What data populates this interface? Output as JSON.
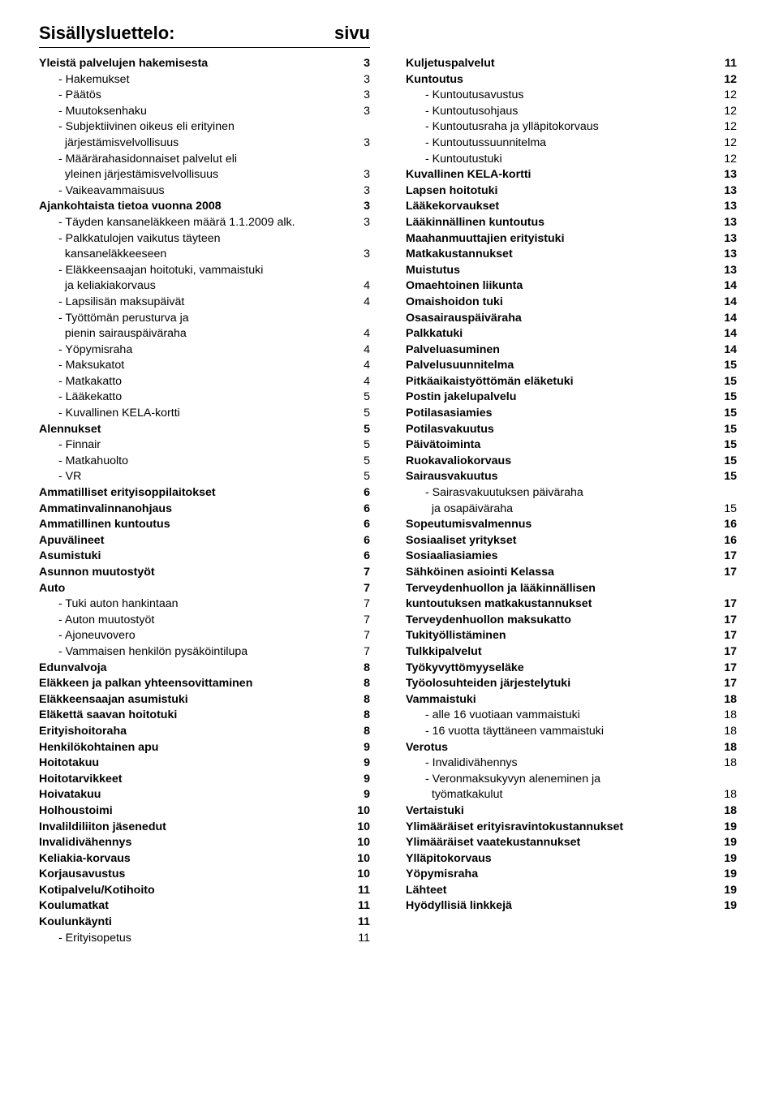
{
  "title_left": "Sisällysluettelo:",
  "title_right": "sivu",
  "left": [
    {
      "label": "Yleistä palvelujen hakemisesta",
      "page": "3",
      "bold": true,
      "indent": 0
    },
    {
      "label": "- Hakemukset",
      "page": "3",
      "bold": false,
      "indent": 1
    },
    {
      "label": "- Päätös",
      "page": "3",
      "bold": false,
      "indent": 1
    },
    {
      "label": "- Muutoksenhaku",
      "page": "3",
      "bold": false,
      "indent": 1
    },
    {
      "label": "- Subjektiivinen oikeus eli erityinen",
      "page": "",
      "bold": false,
      "indent": 1,
      "nopage": true
    },
    {
      "label": "järjestämisvelvollisuus",
      "page": "3",
      "bold": false,
      "indent": 1,
      "pad": true
    },
    {
      "label": "- Määrärahasidonnaiset palvelut eli",
      "page": "",
      "bold": false,
      "indent": 1,
      "nopage": true
    },
    {
      "label": "yleinen järjestämisvelvollisuus",
      "page": "3",
      "bold": false,
      "indent": 1,
      "pad": true
    },
    {
      "label": "- Vaikeavammaisuus",
      "page": "3",
      "bold": false,
      "indent": 1
    },
    {
      "label": "Ajankohtaista tietoa vuonna 2008",
      "page": "3",
      "bold": true,
      "indent": 0
    },
    {
      "label": "- Täyden kansaneläkkeen määrä 1.1.2009 alk.",
      "page": "3",
      "bold": false,
      "indent": 1
    },
    {
      "label": "- Palkkatulojen vaikutus täyteen",
      "page": "",
      "bold": false,
      "indent": 1,
      "nopage": true
    },
    {
      "label": "kansaneläkkeeseen",
      "page": "3",
      "bold": false,
      "indent": 1,
      "pad": true
    },
    {
      "label": "- Eläkkeensaajan hoitotuki, vammaistuki",
      "page": "",
      "bold": false,
      "indent": 1,
      "nopage": true
    },
    {
      "label": "ja keliakiakorvaus",
      "page": "4",
      "bold": false,
      "indent": 1,
      "pad": true
    },
    {
      "label": "- Lapsilisän maksupäivät",
      "page": "4",
      "bold": false,
      "indent": 1
    },
    {
      "label": "- Työttömän perusturva ja",
      "page": "",
      "bold": false,
      "indent": 1,
      "nopage": true
    },
    {
      "label": "pienin sairauspäiväraha",
      "page": "4",
      "bold": false,
      "indent": 1,
      "pad": true
    },
    {
      "label": "- Yöpymisraha",
      "page": "4",
      "bold": false,
      "indent": 1
    },
    {
      "label": "- Maksukatot",
      "page": "4",
      "bold": false,
      "indent": 1
    },
    {
      "label": "- Matkakatto",
      "page": "4",
      "bold": false,
      "indent": 1
    },
    {
      "label": "- Lääkekatto",
      "page": "5",
      "bold": false,
      "indent": 1
    },
    {
      "label": "- Kuvallinen KELA-kortti",
      "page": "5",
      "bold": false,
      "indent": 1
    },
    {
      "label": "Alennukset",
      "page": "5",
      "bold": true,
      "indent": 0
    },
    {
      "label": "- Finnair",
      "page": "5",
      "bold": false,
      "indent": 1
    },
    {
      "label": "- Matkahuolto",
      "page": "5",
      "bold": false,
      "indent": 1
    },
    {
      "label": "- VR",
      "page": "5",
      "bold": false,
      "indent": 1
    },
    {
      "label": "Ammatilliset erityisoppilaitokset",
      "page": "6",
      "bold": true,
      "indent": 0
    },
    {
      "label": "Ammatinvalinnanohjaus",
      "page": "6",
      "bold": true,
      "indent": 0
    },
    {
      "label": "Ammatillinen kuntoutus",
      "page": "6",
      "bold": true,
      "indent": 0
    },
    {
      "label": "Apuvälineet",
      "page": "6",
      "bold": true,
      "indent": 0
    },
    {
      "label": "Asumistuki",
      "page": "6",
      "bold": true,
      "indent": 0
    },
    {
      "label": "Asunnon muutostyöt",
      "page": "7",
      "bold": true,
      "indent": 0
    },
    {
      "label": "Auto",
      "page": "7",
      "bold": true,
      "indent": 0
    },
    {
      "label": "- Tuki auton hankintaan",
      "page": "7",
      "bold": false,
      "indent": 1
    },
    {
      "label": "- Auton muutostyöt",
      "page": "7",
      "bold": false,
      "indent": 1
    },
    {
      "label": "- Ajoneuvovero",
      "page": "7",
      "bold": false,
      "indent": 1
    },
    {
      "label": "- Vammaisen henkilön pysäköintilupa",
      "page": "7",
      "bold": false,
      "indent": 1
    },
    {
      "label": "Edunvalvoja",
      "page": "8",
      "bold": true,
      "indent": 0
    },
    {
      "label": "Eläkkeen ja palkan yhteensovittaminen",
      "page": "8",
      "bold": true,
      "indent": 0
    },
    {
      "label": "Eläkkeensaajan asumistuki",
      "page": "8",
      "bold": true,
      "indent": 0
    },
    {
      "label": "Eläkettä saavan hoitotuki",
      "page": "8",
      "bold": true,
      "indent": 0
    },
    {
      "label": "Erityishoitoraha",
      "page": "8",
      "bold": true,
      "indent": 0
    },
    {
      "label": "Henkilökohtainen apu",
      "page": "9",
      "bold": true,
      "indent": 0
    },
    {
      "label": "Hoitotakuu",
      "page": "9",
      "bold": true,
      "indent": 0
    },
    {
      "label": "Hoitotarvikkeet",
      "page": "9",
      "bold": true,
      "indent": 0
    },
    {
      "label": "Hoivatakuu",
      "page": "9",
      "bold": true,
      "indent": 0
    },
    {
      "label": "Holhoustoimi",
      "page": "10",
      "bold": true,
      "indent": 0
    },
    {
      "label": "Invalildiliiton jäsenedut",
      "page": "10",
      "bold": true,
      "indent": 0
    },
    {
      "label": "Invalidivähennys",
      "page": "10",
      "bold": true,
      "indent": 0
    },
    {
      "label": "Keliakia-korvaus",
      "page": "10",
      "bold": true,
      "indent": 0
    },
    {
      "label": "Korjausavustus",
      "page": "10",
      "bold": true,
      "indent": 0
    },
    {
      "label": "Kotipalvelu/Kotihoito",
      "page": "11",
      "bold": true,
      "indent": 0
    },
    {
      "label": "Koulumatkat",
      "page": "11",
      "bold": true,
      "indent": 0
    },
    {
      "label": "Koulunkäynti",
      "page": "11",
      "bold": true,
      "indent": 0
    },
    {
      "label": "- Erityisopetus",
      "page": "11",
      "bold": false,
      "indent": 1
    }
  ],
  "right": [
    {
      "label": "Kuljetuspalvelut",
      "page": "11",
      "bold": true,
      "indent": 0
    },
    {
      "label": "Kuntoutus",
      "page": "12",
      "bold": true,
      "indent": 0
    },
    {
      "label": "- Kuntoutusavustus",
      "page": "12",
      "bold": false,
      "indent": 1
    },
    {
      "label": "- Kuntoutusohjaus",
      "page": "12",
      "bold": false,
      "indent": 1
    },
    {
      "label": "- Kuntoutusraha ja ylläpitokorvaus",
      "page": "12",
      "bold": false,
      "indent": 1
    },
    {
      "label": "- Kuntoutussuunnitelma",
      "page": "12",
      "bold": false,
      "indent": 1
    },
    {
      "label": "- Kuntoutustuki",
      "page": "12",
      "bold": false,
      "indent": 1
    },
    {
      "label": "Kuvallinen KELA-kortti",
      "page": "13",
      "bold": true,
      "indent": 0
    },
    {
      "label": "Lapsen hoitotuki",
      "page": "13",
      "bold": true,
      "indent": 0
    },
    {
      "label": "Lääkekorvaukset",
      "page": "13",
      "bold": true,
      "indent": 0
    },
    {
      "label": "Lääkinnällinen kuntoutus",
      "page": "13",
      "bold": true,
      "indent": 0
    },
    {
      "label": "Maahanmuuttajien erityistuki",
      "page": "13",
      "bold": true,
      "indent": 0
    },
    {
      "label": "Matkakustannukset",
      "page": "13",
      "bold": true,
      "indent": 0
    },
    {
      "label": "Muistutus",
      "page": "13",
      "bold": true,
      "indent": 0
    },
    {
      "label": "Omaehtoinen liikunta",
      "page": "14",
      "bold": true,
      "indent": 0
    },
    {
      "label": "Omaishoidon tuki",
      "page": "14",
      "bold": true,
      "indent": 0
    },
    {
      "label": "Osasairauspäiväraha",
      "page": "14",
      "bold": true,
      "indent": 0
    },
    {
      "label": "Palkkatuki",
      "page": "14",
      "bold": true,
      "indent": 0
    },
    {
      "label": "Palveluasuminen",
      "page": "14",
      "bold": true,
      "indent": 0
    },
    {
      "label": "Palvelusuunnitelma",
      "page": "15",
      "bold": true,
      "indent": 0
    },
    {
      "label": "Pitkäaikaistyöttömän eläketuki",
      "page": "15",
      "bold": true,
      "indent": 0
    },
    {
      "label": "Postin jakelupalvelu",
      "page": "15",
      "bold": true,
      "indent": 0
    },
    {
      "label": "Potilasasiamies",
      "page": "15",
      "bold": true,
      "indent": 0
    },
    {
      "label": "Potilasvakuutus",
      "page": "15",
      "bold": true,
      "indent": 0
    },
    {
      "label": "Päivätoiminta",
      "page": "15",
      "bold": true,
      "indent": 0
    },
    {
      "label": "Ruokavaliokorvaus",
      "page": "15",
      "bold": true,
      "indent": 0
    },
    {
      "label": "Sairausvakuutus",
      "page": "15",
      "bold": true,
      "indent": 0
    },
    {
      "label": "- Sairasvakuutuksen päiväraha",
      "page": "",
      "bold": false,
      "indent": 1,
      "nopage": true
    },
    {
      "label": "ja osapäiväraha",
      "page": "15",
      "bold": false,
      "indent": 1,
      "pad": true
    },
    {
      "label": "Sopeutumisvalmennus",
      "page": "16",
      "bold": true,
      "indent": 0
    },
    {
      "label": "Sosiaaliset yritykset",
      "page": "16",
      "bold": true,
      "indent": 0
    },
    {
      "label": "Sosiaaliasiamies",
      "page": "17",
      "bold": true,
      "indent": 0
    },
    {
      "label": "Sähköinen asiointi Kelassa",
      "page": "17",
      "bold": true,
      "indent": 0
    },
    {
      "label": "Terveydenhuollon ja lääkinnällisen",
      "page": "",
      "bold": true,
      "indent": 0,
      "nopage": true
    },
    {
      "label": "kuntoutuksen matkakustannukset",
      "page": "17",
      "bold": true,
      "indent": 0
    },
    {
      "label": "Terveydenhuollon maksukatto",
      "page": "17",
      "bold": true,
      "indent": 0
    },
    {
      "label": "Tukityöllistäminen",
      "page": "17",
      "bold": true,
      "indent": 0
    },
    {
      "label": "Tulkkipalvelut",
      "page": "17",
      "bold": true,
      "indent": 0
    },
    {
      "label": "Työkyvyttömyyseläke",
      "page": "17",
      "bold": true,
      "indent": 0
    },
    {
      "label": "Työolosuhteiden järjestelytuki",
      "page": "17",
      "bold": true,
      "indent": 0
    },
    {
      "label": "Vammaistuki",
      "page": "18",
      "bold": true,
      "indent": 0
    },
    {
      "label": "- alle 16 vuotiaan vammaistuki",
      "page": "18",
      "bold": false,
      "indent": 1
    },
    {
      "label": "- 16 vuotta täyttäneen vammaistuki",
      "page": "18",
      "bold": false,
      "indent": 1
    },
    {
      "label": "Verotus",
      "page": "18",
      "bold": true,
      "indent": 0
    },
    {
      "label": "- Invalidivähennys",
      "page": "18",
      "bold": false,
      "indent": 1
    },
    {
      "label": "- Veronmaksukyvyn aleneminen ja",
      "page": "",
      "bold": false,
      "indent": 1,
      "nopage": true
    },
    {
      "label": "työmatkakulut",
      "page": "18",
      "bold": false,
      "indent": 1,
      "pad": true
    },
    {
      "label": "Vertaistuki",
      "page": "18",
      "bold": true,
      "indent": 0
    },
    {
      "label": "Ylimääräiset erityisravintokustannukset",
      "page": "19",
      "bold": true,
      "indent": 0
    },
    {
      "label": "Ylimääräiset vaatekustannukset",
      "page": "19",
      "bold": true,
      "indent": 0
    },
    {
      "label": "Ylläpitokorvaus",
      "page": "19",
      "bold": true,
      "indent": 0
    },
    {
      "label": "Yöpymisraha",
      "page": "19",
      "bold": true,
      "indent": 0
    },
    {
      "label": "Lähteet",
      "page": "19",
      "bold": true,
      "indent": 0
    },
    {
      "label": "Hyödyllisiä linkkejä",
      "page": "19",
      "bold": true,
      "indent": 0
    }
  ]
}
